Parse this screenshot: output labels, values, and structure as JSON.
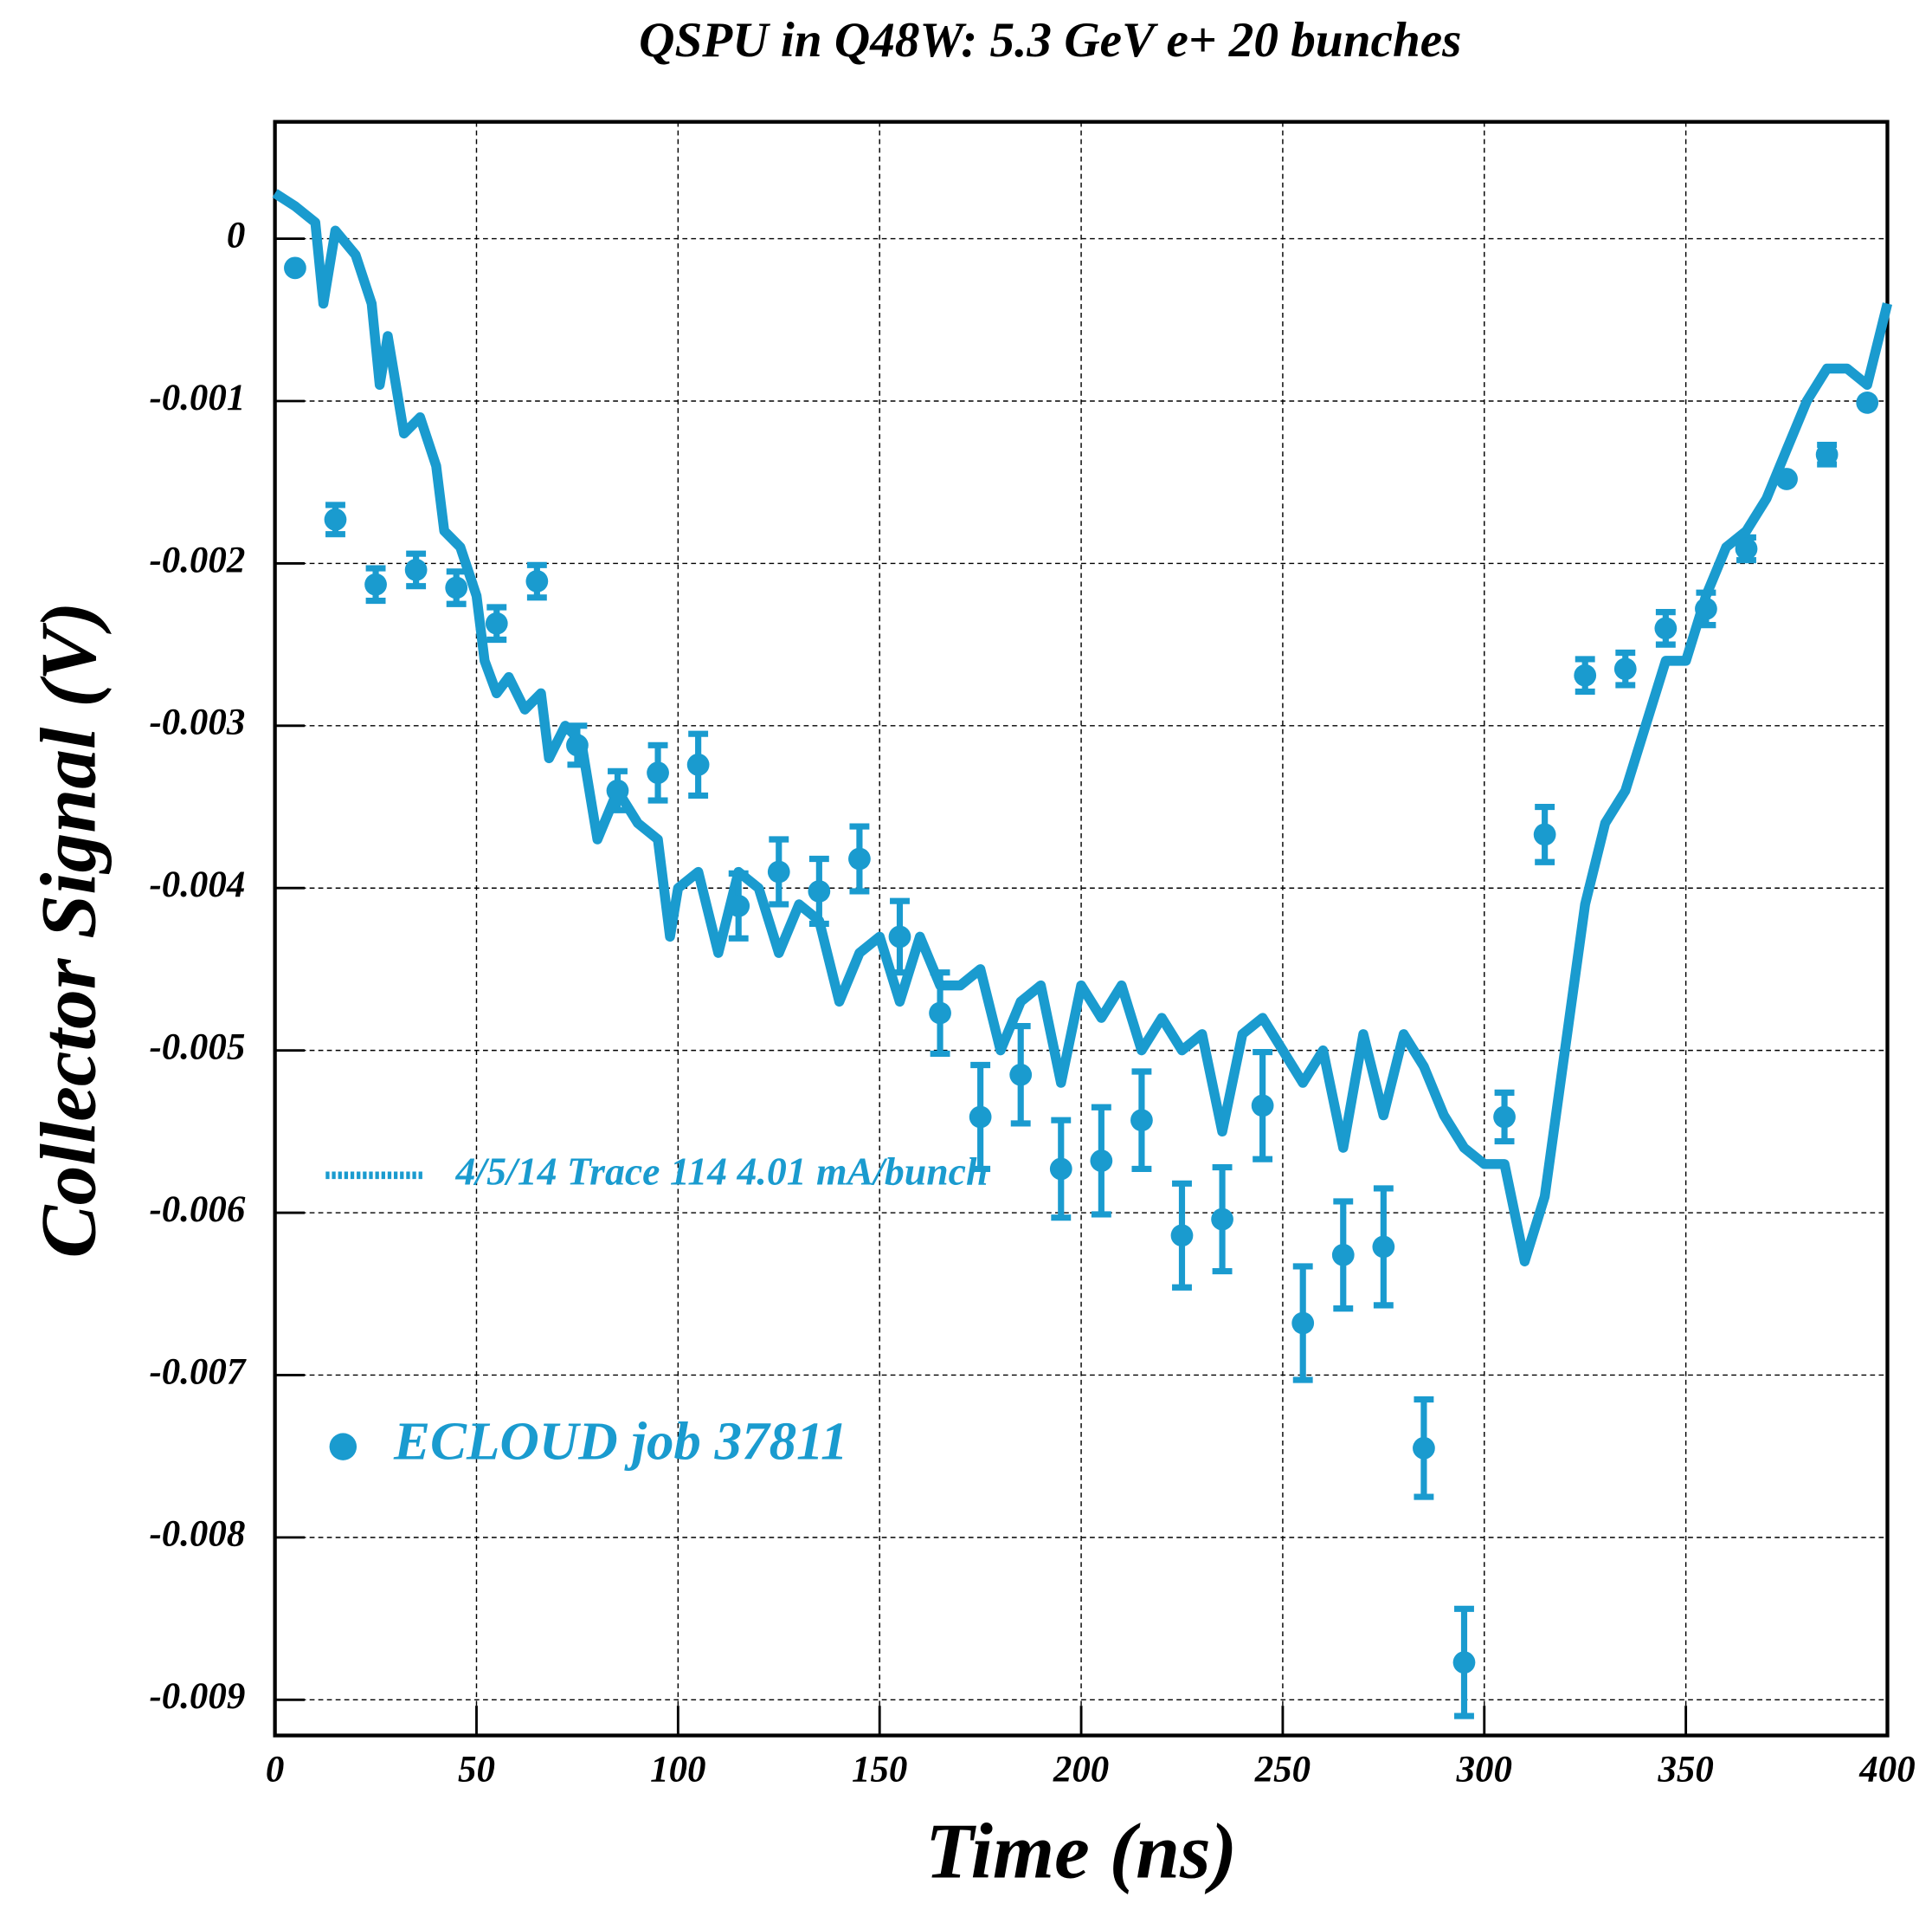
{
  "chart_data": {
    "type": "line",
    "title": "QSPU in Q48W:  5.3 GeV e+ 20 bunches",
    "x_label": "Time (ns)",
    "y_label": "Collector Signal (V)",
    "xlim": [
      0,
      400
    ],
    "xticks": [
      0,
      50,
      100,
      150,
      200,
      250,
      300,
      350,
      400
    ],
    "ylim": [
      -0.00922,
      0.00072
    ],
    "yticks": [
      0,
      -0.001,
      -0.002,
      -0.003,
      -0.004,
      -0.005,
      -0.006,
      -0.007,
      -0.008,
      -0.009
    ],
    "grid": true,
    "series": [
      {
        "name": "4/5/14 Trace 114  4.01 mA/bunch",
        "type": "line",
        "color": "#1a9bcf",
        "x": [
          0,
          5,
          10,
          12,
          15,
          20,
          24,
          26,
          28,
          32,
          36,
          40,
          42,
          46,
          50,
          52,
          55,
          58,
          62,
          66,
          68,
          72,
          76,
          80,
          85,
          90,
          95,
          98,
          100,
          105,
          110,
          115,
          120,
          125,
          130,
          135,
          140,
          145,
          150,
          155,
          160,
          165,
          170,
          175,
          180,
          185,
          190,
          195,
          200,
          205,
          210,
          215,
          220,
          225,
          230,
          235,
          240,
          245,
          250,
          255,
          260,
          265,
          270,
          275,
          280,
          285,
          290,
          295,
          300,
          305,
          310,
          315,
          320,
          325,
          330,
          335,
          340,
          345,
          350,
          355,
          360,
          365,
          370,
          375,
          380,
          385,
          390,
          395,
          400
        ],
        "values": [
          0.00028,
          0.0002,
          0.0001,
          -0.0004,
          5e-05,
          -0.0001,
          -0.0004,
          -0.0009,
          -0.0006,
          -0.0012,
          -0.0011,
          -0.0014,
          -0.0018,
          -0.0019,
          -0.0022,
          -0.0026,
          -0.0028,
          -0.0027,
          -0.0029,
          -0.0028,
          -0.0032,
          -0.003,
          -0.0031,
          -0.0037,
          -0.0034,
          -0.0036,
          -0.0037,
          -0.0043,
          -0.004,
          -0.0039,
          -0.0044,
          -0.0039,
          -0.004,
          -0.0044,
          -0.0041,
          -0.0042,
          -0.0047,
          -0.0044,
          -0.0043,
          -0.0047,
          -0.0043,
          -0.0046,
          -0.0046,
          -0.0045,
          -0.005,
          -0.0047,
          -0.0046,
          -0.0052,
          -0.0046,
          -0.0048,
          -0.0046,
          -0.005,
          -0.0048,
          -0.005,
          -0.0049,
          -0.0055,
          -0.0049,
          -0.0048,
          -0.005,
          -0.0052,
          -0.005,
          -0.0056,
          -0.0049,
          -0.0054,
          -0.0049,
          -0.0051,
          -0.0054,
          -0.0056,
          -0.0057,
          -0.0057,
          -0.0063,
          -0.0059,
          -0.005,
          -0.0041,
          -0.0036,
          -0.0034,
          -0.003,
          -0.0026,
          -0.0026,
          -0.0022,
          -0.0019,
          -0.0018,
          -0.0016,
          -0.0013,
          -0.001,
          -0.0008,
          -0.0008,
          -0.0009,
          -0.0004
        ]
      },
      {
        "name": "ECLOUD job 37811",
        "type": "scatter",
        "color": "#1a9bcf",
        "x": [
          5,
          15,
          25,
          35,
          45,
          55,
          65,
          75,
          85,
          95,
          105,
          115,
          125,
          135,
          145,
          155,
          165,
          175,
          185,
          195,
          205,
          215,
          225,
          235,
          245,
          255,
          265,
          275,
          285,
          295,
          305,
          315,
          325,
          335,
          345,
          355,
          365,
          375,
          385,
          395
        ],
        "values": [
          -0.00018,
          -0.00173,
          -0.00213,
          -0.00204,
          -0.00215,
          -0.00237,
          -0.00211,
          -0.00312,
          -0.0034,
          -0.00329,
          -0.00324,
          -0.00411,
          -0.0039,
          -0.00402,
          -0.00382,
          -0.0043,
          -0.00477,
          -0.00541,
          -0.00515,
          -0.00573,
          -0.00568,
          -0.00543,
          -0.00614,
          -0.00604,
          -0.00534,
          -0.00668,
          -0.00626,
          -0.00621,
          -0.00745,
          -0.00877,
          -0.00541,
          -0.00367,
          -0.00269,
          -0.00265,
          -0.0024,
          -0.00228,
          -0.00191,
          -0.00148,
          -0.00133,
          -0.00101
        ],
        "errors": [
          null,
          9e-05,
          0.0001,
          0.0001,
          0.0001,
          0.0001,
          0.0001,
          0.00012,
          0.00012,
          0.00017,
          0.00019,
          0.0002,
          0.0002,
          0.0002,
          0.0002,
          0.00022,
          0.00025,
          0.00032,
          0.0003,
          0.0003,
          0.00033,
          0.0003,
          0.00032,
          0.00032,
          0.00033,
          0.00035,
          0.00033,
          0.00036,
          0.0003,
          0.00033,
          0.00015,
          0.00017,
          0.0001,
          0.0001,
          0.0001,
          0.0001,
          7e-05,
          null,
          6e-05,
          null
        ]
      }
    ]
  }
}
